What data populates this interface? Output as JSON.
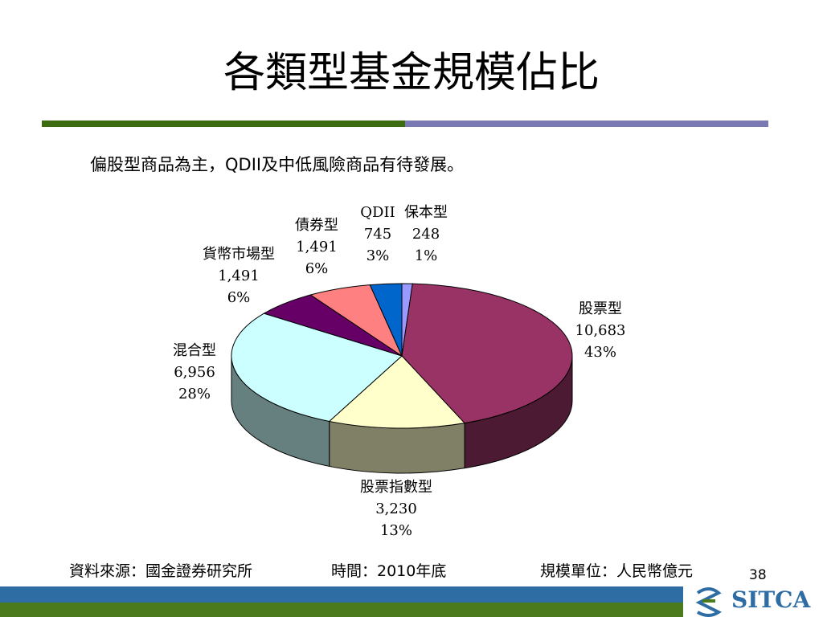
{
  "slide": {
    "title": "各類型基金規模佔比",
    "subtitle": "偏股型商品為主，QDII及中低風險商品有待發展。",
    "footer": {
      "source": "資料來源：國金證券研究所",
      "time": "時間：2010年底",
      "unit": "規模單位：人民幣億元"
    },
    "page_number": "38",
    "logo_text": "SITCA"
  },
  "colors": {
    "title_rule_left": "#3d6b12",
    "title_rule_right": "#7a79b4",
    "footer_band_top": "#2e6da4",
    "footer_band_bottom": "#4a7a1c"
  },
  "chart_data": {
    "type": "pie",
    "style": "3d",
    "slices": [
      {
        "label": "保本型",
        "value": 248,
        "value_text": "248",
        "percent": "1%",
        "color": "#9999ff"
      },
      {
        "label": "股票型",
        "value": 10683,
        "value_text": "10,683",
        "percent": "43%",
        "color": "#993366"
      },
      {
        "label": "股票指數型",
        "value": 3230,
        "value_text": "3,230",
        "percent": "13%",
        "color": "#ffffcc"
      },
      {
        "label": "混合型",
        "value": 6956,
        "value_text": "6,956",
        "percent": "28%",
        "color": "#ccffff"
      },
      {
        "label": "貨幣市場型",
        "value": 1491,
        "value_text": "1,491",
        "percent": "6%",
        "color": "#660066"
      },
      {
        "label": "債券型",
        "value": 1491,
        "value_text": "1,491",
        "percent": "6%",
        "color": "#ff8080"
      },
      {
        "label": "QDII",
        "value": 745,
        "value_text": "745",
        "percent": "3%",
        "color": "#0066cc"
      }
    ]
  }
}
